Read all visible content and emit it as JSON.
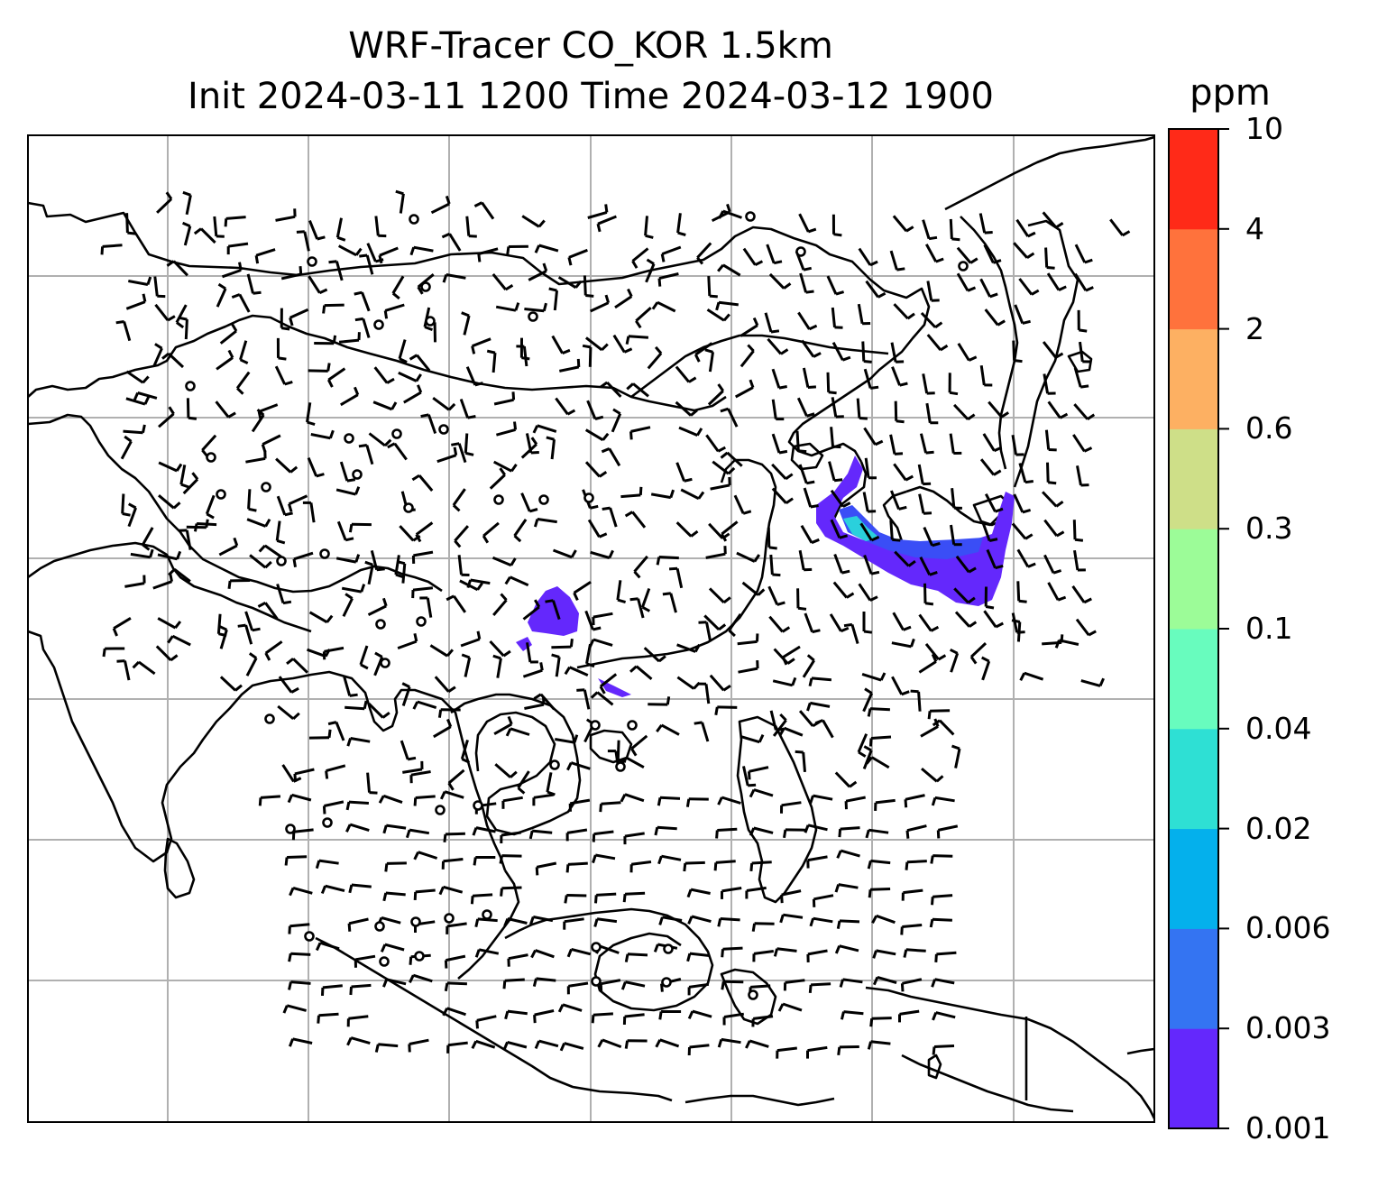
{
  "title": {
    "line1": "WRF-Tracer CO_KOR 1.5km",
    "line2": "Init 2024-03-11 1200 Time 2024-03-12 1900"
  },
  "colorbar": {
    "unit": "ppm",
    "levels": [
      "0.001",
      "0.003",
      "0.006",
      "0.02",
      "0.04",
      "0.1",
      "0.3",
      "0.6",
      "2",
      "4",
      "10"
    ],
    "colors": [
      "#6428fc",
      "#3474f2",
      "#04b0ec",
      "#2ee0d4",
      "#68fcbe",
      "#9cfc98",
      "#cedf88",
      "#fdb062",
      "#ff723c",
      "#ff2a18"
    ]
  },
  "map": {
    "gridlines": true,
    "contents": [
      "coastlines",
      "country-borders",
      "wind-barbs",
      "tracer-concentration"
    ],
    "plume_colors": [
      "#6428fc",
      "#3a4ef6",
      "#2ad0dc"
    ]
  }
}
